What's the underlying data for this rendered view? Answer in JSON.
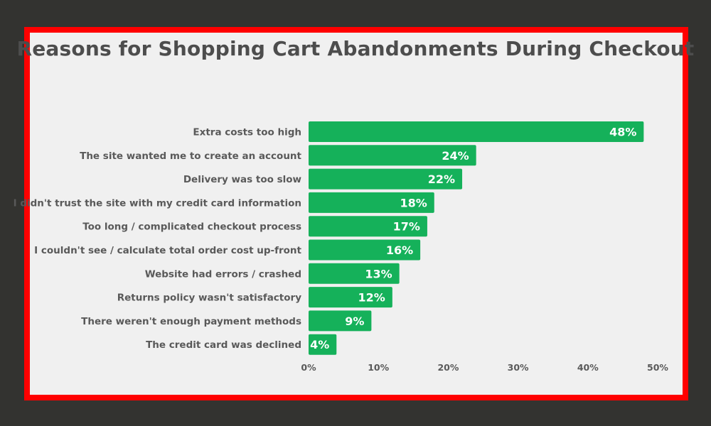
{
  "chart_data": {
    "type": "bar",
    "orientation": "horizontal",
    "title": "Reasons for Shopping Cart Abandonments During Checkout",
    "categories": [
      "Extra costs too high",
      "The site wanted me to create an account",
      "Delivery was too slow",
      "I didn't trust the site with my credit card information",
      "Too long / complicated checkout process",
      "I couldn't see / calculate total order cost up-front",
      "Website had errors / crashed",
      "Returns policy wasn't satisfactory",
      "There weren't enough payment methods",
      "The credit card was declined"
    ],
    "values": [
      48,
      24,
      22,
      18,
      17,
      16,
      13,
      12,
      9,
      4
    ],
    "value_labels": [
      "48%",
      "24%",
      "22%",
      "18%",
      "17%",
      "16%",
      "13%",
      "12%",
      "9%",
      "4%"
    ],
    "xlim": [
      0,
      50
    ],
    "x_ticks": [
      0,
      10,
      20,
      30,
      40,
      50
    ],
    "x_tick_labels": [
      "0%",
      "10%",
      "20%",
      "30%",
      "40%",
      "50%"
    ],
    "grid": false,
    "legend": "none",
    "bar_color": "#15b15a"
  },
  "colors": {
    "background": "#333330",
    "frame_border": "#ff0000",
    "panel": "#f0f0f0",
    "title_text": "#4d4d4d",
    "label_text": "#595959",
    "bar_text": "#ffffff"
  }
}
